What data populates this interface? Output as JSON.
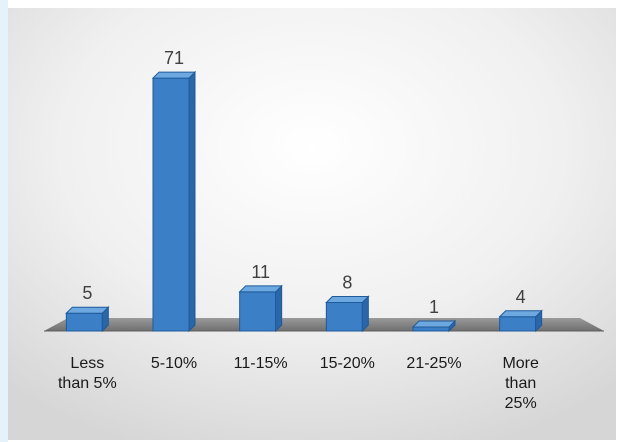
{
  "chart_data": {
    "type": "bar",
    "title": "",
    "xlabel": "",
    "ylabel": "",
    "categories": [
      [
        "Less",
        "than 5%"
      ],
      [
        "5-10%"
      ],
      [
        "11-15%"
      ],
      [
        "15-20%"
      ],
      [
        "21-25%"
      ],
      [
        "More",
        "than",
        "25%"
      ]
    ],
    "values": [
      5,
      71,
      11,
      8,
      1,
      4
    ],
    "ylim": [
      0,
      80
    ],
    "grid": false,
    "legend": "none",
    "bar_color": "#3b80c6",
    "bar_side_color": "#2a66a8",
    "bar_top_color": "#6ea8e0",
    "floor_color": "#7f7f7f",
    "label_color": "#404040"
  }
}
